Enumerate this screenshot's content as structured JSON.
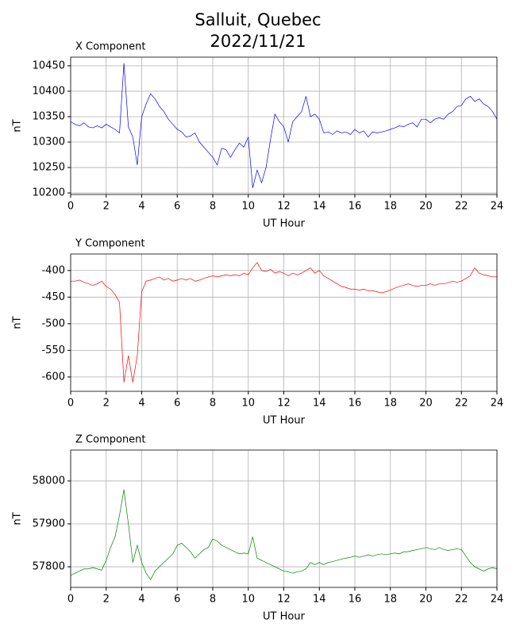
{
  "title": [
    "Salluit, Quebec",
    "2022/11/21"
  ],
  "chart_data": [
    {
      "type": "line",
      "title": "X Component",
      "xlabel": "UT Hour",
      "ylabel": "nT",
      "xlim": [
        0,
        24
      ],
      "xticks": [
        0,
        2,
        4,
        6,
        8,
        10,
        12,
        14,
        16,
        18,
        20,
        22,
        24
      ],
      "ylim": [
        10197,
        10467
      ],
      "yticks": [
        10200,
        10250,
        10300,
        10350,
        10400,
        10450
      ],
      "grid": true,
      "x": [
        0,
        0.25,
        0.5,
        0.75,
        1,
        1.25,
        1.5,
        1.75,
        2,
        2.25,
        2.5,
        2.75,
        3,
        3.25,
        3.5,
        3.75,
        4,
        4.25,
        4.5,
        4.75,
        5,
        5.25,
        5.5,
        5.75,
        6,
        6.25,
        6.5,
        6.75,
        7,
        7.25,
        7.5,
        7.75,
        8,
        8.25,
        8.5,
        8.75,
        9,
        9.25,
        9.5,
        9.75,
        10,
        10.25,
        10.5,
        10.75,
        11,
        11.25,
        11.5,
        11.75,
        12,
        12.25,
        12.5,
        12.75,
        13,
        13.25,
        13.5,
        13.75,
        14,
        14.25,
        14.5,
        14.75,
        15,
        15.25,
        15.5,
        15.75,
        16,
        16.25,
        16.5,
        16.75,
        17,
        17.25,
        17.5,
        17.75,
        18,
        18.25,
        18.5,
        18.75,
        19,
        19.25,
        19.5,
        19.75,
        20,
        20.25,
        20.5,
        20.75,
        21,
        21.25,
        21.5,
        21.75,
        22,
        22.25,
        22.5,
        22.75,
        23,
        23.25,
        23.5,
        23.75,
        24
      ],
      "series": [
        {
          "color": "#0000ff",
          "values": [
            10340,
            10335,
            10332,
            10338,
            10330,
            10328,
            10332,
            10328,
            10335,
            10330,
            10325,
            10318,
            10455,
            10330,
            10310,
            10255,
            10350,
            10375,
            10395,
            10385,
            10370,
            10360,
            10345,
            10335,
            10325,
            10320,
            10310,
            10312,
            10318,
            10300,
            10290,
            10280,
            10270,
            10255,
            10288,
            10285,
            10270,
            10285,
            10298,
            10290,
            10310,
            10210,
            10245,
            10220,
            10250,
            10305,
            10355,
            10340,
            10330,
            10300,
            10340,
            10350,
            10360,
            10390,
            10350,
            10355,
            10345,
            10318,
            10320,
            10315,
            10322,
            10318,
            10320,
            10315,
            10325,
            10318,
            10322,
            10310,
            10320,
            10318,
            10320,
            10322,
            10325,
            10328,
            10332,
            10330,
            10335,
            10338,
            10330,
            10345,
            10345,
            10338,
            10345,
            10348,
            10345,
            10355,
            10360,
            10370,
            10372,
            10385,
            10390,
            10380,
            10385,
            10375,
            10370,
            10360,
            10345
          ]
        }
      ]
    },
    {
      "type": "line",
      "title": "Y Component",
      "xlabel": "UT Hour",
      "ylabel": "nT",
      "xlim": [
        0,
        24
      ],
      "xticks": [
        0,
        2,
        4,
        6,
        8,
        10,
        12,
        14,
        16,
        18,
        20,
        22,
        24
      ],
      "ylim": [
        -627,
        -369
      ],
      "yticks": [
        -600,
        -550,
        -500,
        -450,
        -400
      ],
      "grid": true,
      "x": [
        0,
        0.25,
        0.5,
        0.75,
        1,
        1.25,
        1.5,
        1.75,
        2,
        2.25,
        2.5,
        2.75,
        3,
        3.25,
        3.5,
        3.75,
        4,
        4.25,
        4.5,
        4.75,
        5,
        5.25,
        5.5,
        5.75,
        6,
        6.25,
        6.5,
        6.75,
        7,
        7.25,
        7.5,
        7.75,
        8,
        8.25,
        8.5,
        8.75,
        9,
        9.25,
        9.5,
        9.75,
        10,
        10.25,
        10.5,
        10.75,
        11,
        11.25,
        11.5,
        11.75,
        12,
        12.25,
        12.5,
        12.75,
        13,
        13.25,
        13.5,
        13.75,
        14,
        14.25,
        14.5,
        14.75,
        15,
        15.25,
        15.5,
        15.75,
        16,
        16.25,
        16.5,
        16.75,
        17,
        17.25,
        17.5,
        17.75,
        18,
        18.25,
        18.5,
        18.75,
        19,
        19.25,
        19.5,
        19.75,
        20,
        20.25,
        20.5,
        20.75,
        21,
        21.25,
        21.5,
        21.75,
        22,
        22.25,
        22.5,
        22.75,
        23,
        23.25,
        23.5,
        23.75,
        24
      ],
      "series": [
        {
          "color": "#ff0000",
          "values": [
            -420,
            -420,
            -418,
            -422,
            -425,
            -428,
            -425,
            -420,
            -430,
            -435,
            -445,
            -460,
            -610,
            -560,
            -610,
            -560,
            -440,
            -420,
            -418,
            -415,
            -412,
            -418,
            -415,
            -420,
            -418,
            -415,
            -418,
            -415,
            -420,
            -418,
            -415,
            -412,
            -410,
            -412,
            -410,
            -408,
            -410,
            -408,
            -410,
            -405,
            -408,
            -395,
            -385,
            -400,
            -402,
            -398,
            -405,
            -402,
            -405,
            -410,
            -405,
            -408,
            -405,
            -400,
            -395,
            -405,
            -400,
            -410,
            -415,
            -420,
            -425,
            -430,
            -432,
            -435,
            -435,
            -437,
            -435,
            -438,
            -438,
            -440,
            -442,
            -440,
            -437,
            -433,
            -430,
            -428,
            -425,
            -428,
            -430,
            -428,
            -428,
            -425,
            -428,
            -425,
            -425,
            -423,
            -420,
            -422,
            -420,
            -415,
            -410,
            -395,
            -405,
            -408,
            -410,
            -412,
            -412
          ]
        }
      ]
    },
    {
      "type": "line",
      "title": "Z Component",
      "xlabel": "UT Hour",
      "ylabel": "nT",
      "xlim": [
        0,
        24
      ],
      "xticks": [
        0,
        2,
        4,
        6,
        8,
        10,
        12,
        14,
        16,
        18,
        20,
        22,
        24
      ],
      "ylim": [
        57752,
        58072
      ],
      "yticks": [
        57800,
        57900,
        58000
      ],
      "grid": true,
      "x": [
        0,
        0.25,
        0.5,
        0.75,
        1,
        1.25,
        1.5,
        1.75,
        2,
        2.25,
        2.5,
        2.75,
        3,
        3.25,
        3.5,
        3.75,
        4,
        4.25,
        4.5,
        4.75,
        5,
        5.25,
        5.5,
        5.75,
        6,
        6.25,
        6.5,
        6.75,
        7,
        7.25,
        7.5,
        7.75,
        8,
        8.25,
        8.5,
        8.75,
        9,
        9.25,
        9.5,
        9.75,
        10,
        10.25,
        10.5,
        10.75,
        11,
        11.25,
        11.5,
        11.75,
        12,
        12.25,
        12.5,
        12.75,
        13,
        13.25,
        13.5,
        13.75,
        14,
        14.25,
        14.5,
        14.75,
        15,
        15.25,
        15.5,
        15.75,
        16,
        16.25,
        16.5,
        16.75,
        17,
        17.25,
        17.5,
        17.75,
        18,
        18.25,
        18.5,
        18.75,
        19,
        19.25,
        19.5,
        19.75,
        20,
        20.25,
        20.5,
        20.75,
        21,
        21.25,
        21.5,
        21.75,
        22,
        22.25,
        22.5,
        22.75,
        23,
        23.25,
        23.5,
        23.75,
        24
      ],
      "series": [
        {
          "color": "#008000",
          "values": [
            57780,
            57785,
            57790,
            57795,
            57795,
            57798,
            57795,
            57792,
            57815,
            57845,
            57870,
            57920,
            57980,
            57900,
            57810,
            57850,
            57810,
            57785,
            57770,
            57790,
            57800,
            57810,
            57820,
            57830,
            57850,
            57855,
            57845,
            57835,
            57820,
            57830,
            57840,
            57845,
            57865,
            57860,
            57850,
            57845,
            57840,
            57835,
            57830,
            57832,
            57830,
            57870,
            57820,
            57815,
            57810,
            57805,
            57800,
            57795,
            57790,
            57788,
            57785,
            57788,
            57790,
            57795,
            57810,
            57805,
            57810,
            57805,
            57810,
            57812,
            57815,
            57818,
            57820,
            57822,
            57825,
            57822,
            57825,
            57828,
            57825,
            57828,
            57830,
            57828,
            57830,
            57832,
            57830,
            57835,
            57835,
            57838,
            57840,
            57842,
            57845,
            57842,
            57840,
            57845,
            57840,
            57838,
            57840,
            57842,
            57840,
            57825,
            57810,
            57800,
            57795,
            57790,
            57795,
            57798,
            57795
          ]
        }
      ]
    }
  ]
}
